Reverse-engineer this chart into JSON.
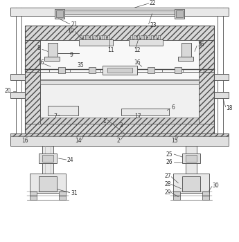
{
  "bg_color": "#ffffff",
  "lc": "#4a4a4a",
  "fc_hatch": "#e0e0e0",
  "fc_light": "#f0f0f0",
  "fc_mid": "#d8d8d8",
  "fig_width": 3.45,
  "fig_height": 3.5
}
